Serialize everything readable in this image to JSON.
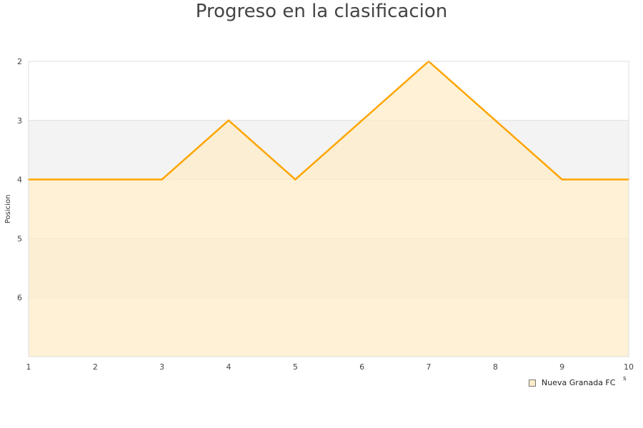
{
  "chart_data": {
    "type": "area",
    "title": "Progreso en la clasificacion",
    "xlabel": "s",
    "ylabel": "Posicion",
    "x": [
      1,
      2,
      3,
      4,
      5,
      6,
      7,
      8,
      9,
      10
    ],
    "series": [
      {
        "name": "Nueva Granada FC",
        "values": [
          4,
          4,
          4,
          3,
          4,
          3,
          2,
          3,
          4,
          4
        ]
      }
    ],
    "xlim": [
      1,
      10
    ],
    "ylim": [
      2,
      7
    ],
    "y_inverted": true,
    "yticks": [
      2,
      3,
      4,
      5,
      6
    ],
    "xticks": [
      1,
      2,
      3,
      4,
      5,
      6,
      7,
      8,
      9,
      10
    ],
    "grid": "alternating horizontal bands",
    "legend": "bottom-right",
    "colors": {
      "line": "#ffa500",
      "fill": "#feecc8",
      "band": "#f3f3f3"
    }
  }
}
